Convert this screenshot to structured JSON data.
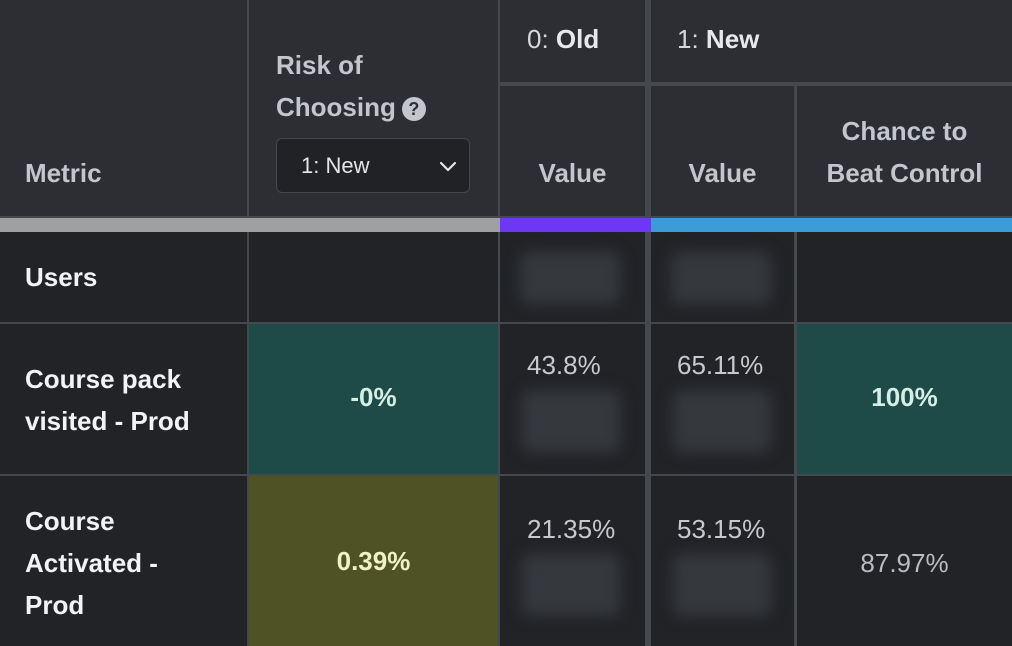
{
  "header": {
    "metric_label": "Metric",
    "risk_label_line1": "Risk of",
    "risk_label_line2": "Choosing",
    "risk_help_icon": "question-circle-icon",
    "risk_select_value": "1: New",
    "variation0_index": "0:",
    "variation0_name": "Old",
    "variation1_index": "1:",
    "variation1_name": "New",
    "value_label": "Value",
    "chance_label_line1": "Chance to",
    "chance_label_line2": "Beat Control"
  },
  "colors": {
    "bar_baseline": "#9fa0a2",
    "bar_variation0": "#6e36f5",
    "bar_variation1": "#3d9bd8",
    "positive_cell": "#1e4a47",
    "warning_cell": "#4f5323"
  },
  "rows": [
    {
      "metric": "Users",
      "risk": "",
      "v0": "",
      "v1": "",
      "chance": ""
    },
    {
      "metric_line1": "Course pack",
      "metric_line2": "visited - Prod",
      "risk": "-0%",
      "v0": "43.8%",
      "v1": "65.11%",
      "chance": "100%"
    },
    {
      "metric_line1": "Course",
      "metric_line2": "Activated -",
      "metric_line3": "Prod",
      "risk": "0.39%",
      "v0": "21.35%",
      "v1": "53.15%",
      "chance": "87.97%"
    }
  ]
}
